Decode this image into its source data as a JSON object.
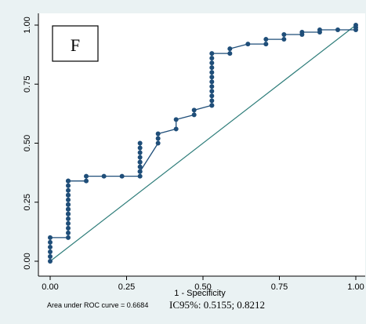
{
  "chart_data": {
    "type": "line",
    "panel_label": "F",
    "xlabel": "1 - Specificity",
    "ylabel": "",
    "xlim": [
      0,
      1
    ],
    "ylim": [
      0,
      1
    ],
    "x_ticks": [
      "0.00",
      "0.25",
      "0.50",
      "0.75",
      "1.00"
    ],
    "y_ticks": [
      "0.00",
      "0.25",
      "0.50",
      "0.75",
      "1.00"
    ],
    "grid": false,
    "auc_text": "Area under ROC curve = 0.6684",
    "ci_text": "IC95%: 0.5155; 0.8212",
    "colors": {
      "curve": "#1f4e79",
      "reference": "#2e7d7a",
      "background": "#eaf2f3",
      "plot_bg": "#ffffff"
    },
    "series": [
      {
        "x": [
          0,
          0,
          0,
          0,
          0,
          0,
          0.059,
          0.059,
          0.059,
          0.059,
          0.059,
          0.059,
          0.059,
          0.059,
          0.059,
          0.059,
          0.059,
          0.059,
          0.059,
          0.059,
          0.059,
          0.059,
          0.059,
          0.059,
          0.118,
          0.118,
          0.176,
          0.235,
          0.294,
          0.294,
          0.294,
          0.294,
          0.294,
          0.294,
          0.294,
          0.294,
          0.294,
          0.294,
          0.353,
          0.353,
          0.353,
          0.412,
          0.412,
          0.471,
          0.471,
          0.529,
          0.529,
          0.529,
          0.529,
          0.529,
          0.529,
          0.529,
          0.529,
          0.529,
          0.529,
          0.529,
          0.529,
          0.529,
          0.588,
          0.588,
          0.647,
          0.706,
          0.706,
          0.765,
          0.765,
          0.824,
          0.824,
          0.882,
          0.882,
          0.941,
          1,
          1,
          1
        ],
        "y": [
          0,
          0.02,
          0.04,
          0.06,
          0.08,
          0.1,
          0.1,
          0.12,
          0.14,
          0.16,
          0.18,
          0.2,
          0.22,
          0.24,
          0.26,
          0.28,
          0.3,
          0.32,
          0.34,
          0.2,
          0.22,
          0.24,
          0.28,
          0.34,
          0.34,
          0.36,
          0.36,
          0.36,
          0.36,
          0.38,
          0.4,
          0.42,
          0.44,
          0.46,
          0.48,
          0.5,
          0.42,
          0.38,
          0.5,
          0.52,
          0.54,
          0.56,
          0.6,
          0.62,
          0.64,
          0.66,
          0.66,
          0.68,
          0.7,
          0.72,
          0.74,
          0.76,
          0.78,
          0.8,
          0.82,
          0.84,
          0.86,
          0.88,
          0.88,
          0.9,
          0.92,
          0.92,
          0.94,
          0.94,
          0.96,
          0.96,
          0.97,
          0.97,
          0.98,
          0.98,
          0.98,
          0.99,
          1
        ]
      }
    ]
  }
}
